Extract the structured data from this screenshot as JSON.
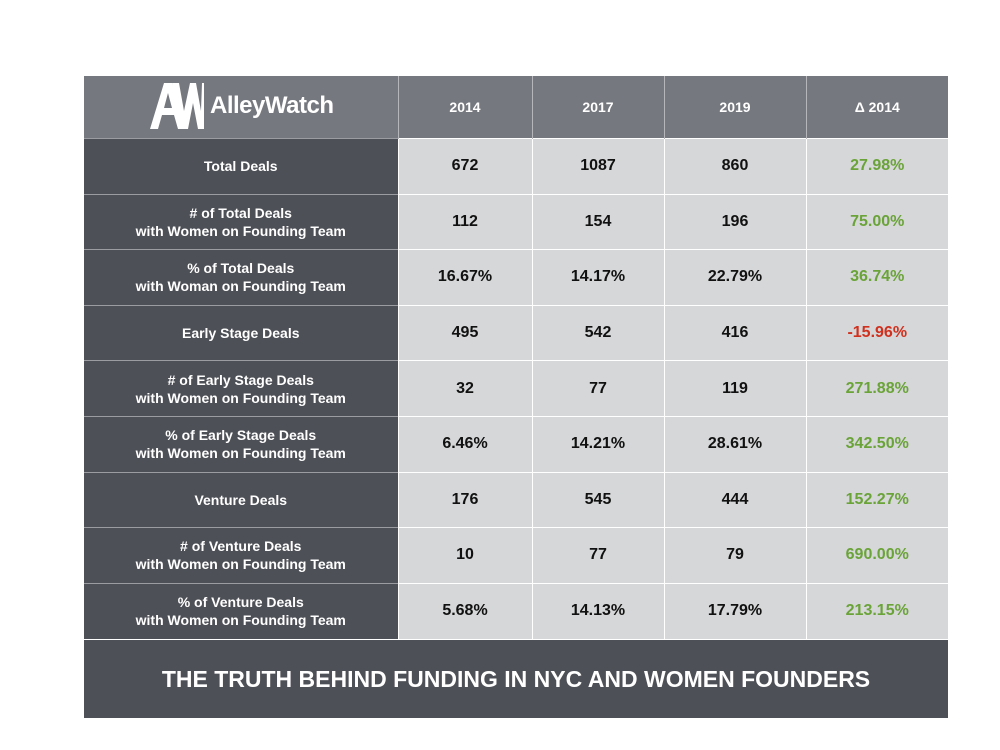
{
  "brand": {
    "name": "AlleyWatch",
    "logo_mark": "AW"
  },
  "footer_title": "THE TRUTH BEHIND FUNDING IN NYC AND WOMEN FOUNDERS",
  "colors": {
    "positive": "#6aa338",
    "negative": "#d0301e",
    "header_bg": "#75787f",
    "row_label_bg": "#4e5057",
    "cell_bg": "#d6d7d9"
  },
  "chart_data": {
    "type": "table",
    "columns": [
      "2014",
      "2017",
      "2019",
      "Δ 2014"
    ],
    "rows": [
      {
        "label": [
          "Total Deals"
        ],
        "values": [
          "672",
          "1087",
          "860"
        ],
        "delta": "27.98%",
        "delta_sign": "pos"
      },
      {
        "label": [
          "# of Total Deals",
          "with Women on Founding Team"
        ],
        "values": [
          "112",
          "154",
          "196"
        ],
        "delta": "75.00%",
        "delta_sign": "pos"
      },
      {
        "label": [
          "% of Total Deals",
          "with Woman on Founding Team"
        ],
        "values": [
          "16.67%",
          "14.17%",
          "22.79%"
        ],
        "delta": "36.74%",
        "delta_sign": "pos"
      },
      {
        "label": [
          "Early Stage Deals"
        ],
        "values": [
          "495",
          "542",
          "416"
        ],
        "delta": "-15.96%",
        "delta_sign": "neg"
      },
      {
        "label": [
          "# of Early Stage Deals",
          "with Women on Founding Team"
        ],
        "values": [
          "32",
          "77",
          "119"
        ],
        "delta": "271.88%",
        "delta_sign": "pos"
      },
      {
        "label": [
          "% of Early Stage Deals",
          "with Women on Founding Team"
        ],
        "values": [
          "6.46%",
          "14.21%",
          "28.61%"
        ],
        "delta": "342.50%",
        "delta_sign": "pos"
      },
      {
        "label": [
          "Venture Deals"
        ],
        "values": [
          "176",
          "545",
          "444"
        ],
        "delta": "152.27%",
        "delta_sign": "pos"
      },
      {
        "label": [
          "# of Venture Deals",
          "with Women on Founding Team"
        ],
        "values": [
          "10",
          "77",
          "79"
        ],
        "delta": "690.00%",
        "delta_sign": "pos"
      },
      {
        "label": [
          "% of Venture Deals",
          "with Women on Founding Team"
        ],
        "values": [
          "5.68%",
          "14.13%",
          "17.79%"
        ],
        "delta": "213.15%",
        "delta_sign": "pos"
      }
    ]
  }
}
